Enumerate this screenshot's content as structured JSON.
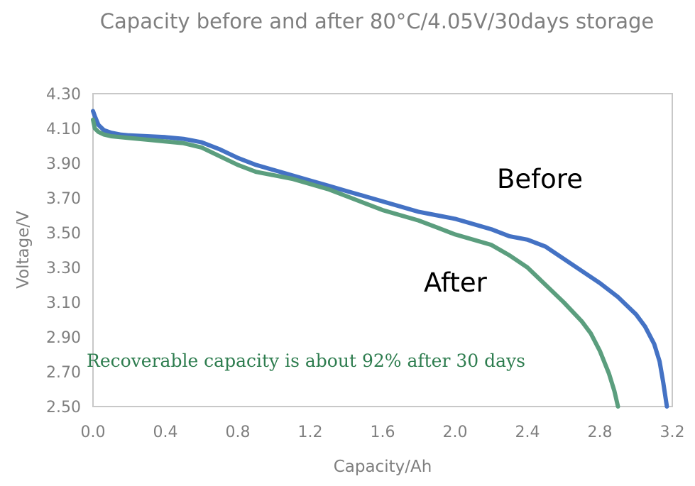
{
  "chart_data": {
    "type": "line",
    "title": "Capacity before and after 80°C/4.05V/30days storage",
    "xlabel": "Capacity/Ah",
    "ylabel": "Voltage/V",
    "xlim": [
      0,
      3.2
    ],
    "ylim": [
      2.5,
      4.3
    ],
    "x_ticks": [
      "0.0",
      "0.4",
      "0.8",
      "1.2",
      "1.6",
      "2.0",
      "2.4",
      "2.8",
      "3.2"
    ],
    "y_ticks": [
      "2.50",
      "2.70",
      "2.90",
      "3.10",
      "3.30",
      "3.50",
      "3.70",
      "3.90",
      "4.10",
      "4.30"
    ],
    "grid": false,
    "series": [
      {
        "name": "Before",
        "color": "#4472c4",
        "x": [
          0.0,
          0.01,
          0.03,
          0.06,
          0.1,
          0.15,
          0.2,
          0.3,
          0.4,
          0.5,
          0.55,
          0.6,
          0.7,
          0.8,
          0.9,
          1.0,
          1.1,
          1.2,
          1.3,
          1.4,
          1.5,
          1.6,
          1.7,
          1.8,
          1.9,
          2.0,
          2.1,
          2.2,
          2.3,
          2.4,
          2.5,
          2.6,
          2.7,
          2.8,
          2.9,
          3.0,
          3.05,
          3.1,
          3.13,
          3.15,
          3.17
        ],
        "y": [
          4.2,
          4.17,
          4.12,
          4.09,
          4.075,
          4.065,
          4.06,
          4.055,
          4.05,
          4.04,
          4.03,
          4.02,
          3.98,
          3.93,
          3.89,
          3.86,
          3.83,
          3.8,
          3.77,
          3.74,
          3.71,
          3.68,
          3.65,
          3.62,
          3.6,
          3.58,
          3.55,
          3.52,
          3.48,
          3.46,
          3.42,
          3.35,
          3.28,
          3.21,
          3.13,
          3.03,
          2.96,
          2.86,
          2.76,
          2.64,
          2.5
        ]
      },
      {
        "name": "After",
        "color": "#5b9e7e",
        "x": [
          0.0,
          0.01,
          0.03,
          0.06,
          0.1,
          0.2,
          0.3,
          0.4,
          0.5,
          0.6,
          0.7,
          0.8,
          0.9,
          1.0,
          1.1,
          1.2,
          1.3,
          1.4,
          1.5,
          1.6,
          1.7,
          1.8,
          1.9,
          2.0,
          2.1,
          2.2,
          2.3,
          2.4,
          2.5,
          2.6,
          2.7,
          2.75,
          2.8,
          2.85,
          2.88,
          2.9
        ],
        "y": [
          4.15,
          4.1,
          4.08,
          4.065,
          4.055,
          4.045,
          4.035,
          4.025,
          4.015,
          3.99,
          3.94,
          3.89,
          3.85,
          3.83,
          3.81,
          3.78,
          3.75,
          3.71,
          3.67,
          3.63,
          3.6,
          3.57,
          3.53,
          3.49,
          3.46,
          3.43,
          3.37,
          3.3,
          3.2,
          3.1,
          2.99,
          2.92,
          2.82,
          2.69,
          2.59,
          2.5
        ]
      }
    ],
    "annotations": [
      {
        "text": "Before"
      },
      {
        "text": "After"
      },
      {
        "text": "Recoverable capacity is about 92% after 30 days",
        "color": "#2e7d4f"
      }
    ]
  }
}
